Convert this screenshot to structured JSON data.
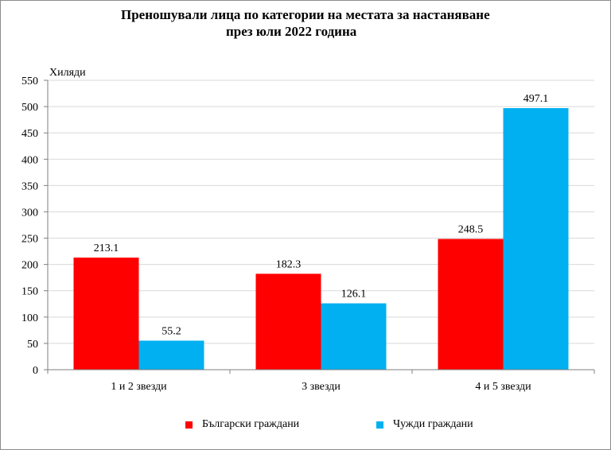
{
  "chart_data": {
    "type": "bar",
    "title_line1": "Преношували лица по категории на местата за настаняване",
    "title_line2": "през юли 2022 година",
    "ylabel": "Хиляди",
    "categories": [
      "1 и 2 звезди",
      "3 звезди",
      "4 и 5 звезди"
    ],
    "series": [
      {
        "name": "Български граждани",
        "values": [
          213.1,
          182.3,
          248.5
        ],
        "value_labels": [
          "213.1",
          "182.3",
          "248.5"
        ],
        "color": "#ff0000"
      },
      {
        "name": "Чужди граждани",
        "values": [
          55.2,
          126.1,
          497.1
        ],
        "value_labels": [
          "55.2",
          "126.1",
          "497.1"
        ],
        "color": "#00b0f0"
      }
    ],
    "ylim": [
      0,
      550
    ],
    "yticks": [
      0,
      50,
      100,
      150,
      200,
      250,
      300,
      350,
      400,
      450,
      500,
      550
    ],
    "grid": true,
    "legend_position": "bottom"
  }
}
